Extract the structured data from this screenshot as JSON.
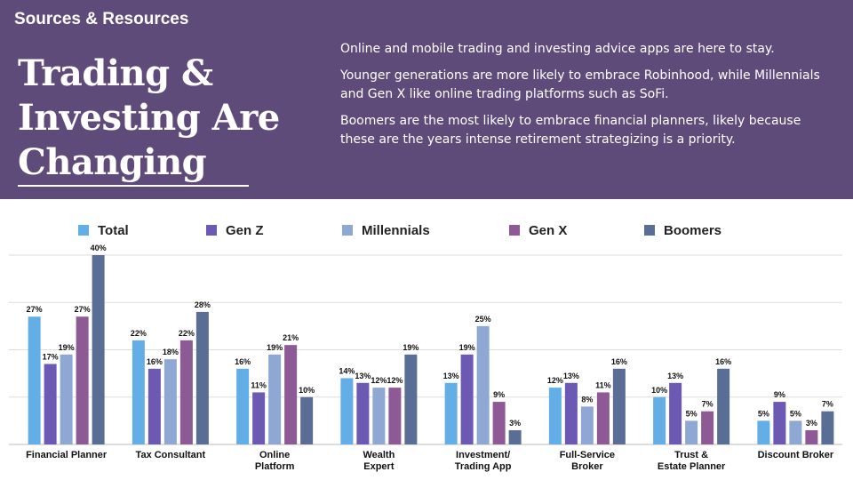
{
  "header": {
    "section_label": "Sources & Resources",
    "title_lines": [
      "Trading &",
      "Investing Are",
      "Changing"
    ],
    "paragraphs": [
      "Online and mobile trading and investing advice apps are here to stay.",
      "Younger generations are more likely to embrace Robinhood, while Millennials and Gen X like online trading platforms such as SoFi.",
      "Boomers are the most likely to embrace financial planners, likely because these are the years intense retirement strategizing is a priority."
    ]
  },
  "colors": {
    "header_bg": "#5f4b7a",
    "series": [
      "#63aee6",
      "#6c59b3",
      "#8ea7d3",
      "#8d5a95",
      "#5a6e95"
    ]
  },
  "chart_data": {
    "type": "bar",
    "title": "",
    "xlabel": "",
    "ylabel": "",
    "ylim": [
      0,
      40
    ],
    "grid": true,
    "legend_position": "top",
    "categories": [
      [
        "Financial Planner"
      ],
      [
        "Tax Consultant"
      ],
      [
        "Online",
        "Platform"
      ],
      [
        "Wealth",
        "Expert"
      ],
      [
        "Investment/",
        "Trading App"
      ],
      [
        "Full-Service",
        "Broker"
      ],
      [
        "Trust &",
        "Estate Planner"
      ],
      [
        "Discount Broker"
      ]
    ],
    "series": [
      {
        "name": "Total",
        "values": [
          27,
          22,
          16,
          14,
          13,
          12,
          10,
          5
        ]
      },
      {
        "name": "Gen Z",
        "values": [
          17,
          16,
          11,
          13,
          19,
          13,
          13,
          9
        ]
      },
      {
        "name": "Millennials",
        "values": [
          19,
          18,
          19,
          12,
          25,
          8,
          5,
          5
        ]
      },
      {
        "name": "Gen X",
        "values": [
          27,
          22,
          21,
          12,
          9,
          11,
          7,
          3
        ]
      },
      {
        "name": "Boomers",
        "values": [
          40,
          28,
          10,
          19,
          3,
          16,
          16,
          7
        ]
      }
    ],
    "value_suffix": "%"
  }
}
